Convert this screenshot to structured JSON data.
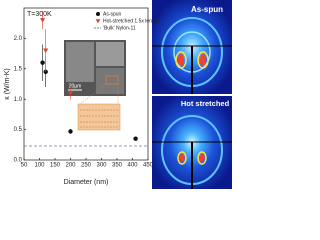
{
  "chart_data": {
    "type": "scatter",
    "annotation": "T=300K",
    "x_label": "Diameter (nm)",
    "y_label": "κ (W/m-K)",
    "xlim": [
      50,
      450
    ],
    "xticks": [
      50,
      100,
      150,
      200,
      250,
      300,
      350,
      400,
      450
    ],
    "ylim": [
      0,
      2.5
    ],
    "yticks": [
      {
        "value": 0,
        "label": "0.0"
      },
      0.5,
      {
        "value": 1,
        "label": "1.0"
      },
      1.5,
      {
        "value": 2,
        "label": "2.0"
      }
    ],
    "series": [
      {
        "name": "As-spun",
        "color": "#111111",
        "marker": "circle",
        "x": [
          110,
          120,
          200,
          410
        ],
        "values": [
          1.6,
          1.45,
          0.47,
          0.35
        ],
        "errors": [
          0.3,
          0.25,
          0.04,
          0.03
        ]
      },
      {
        "name": "Hot-stretched 1.5x length",
        "color": "#d9432f",
        "marker": "triangle-down",
        "x": [
          110,
          120,
          200
        ],
        "values": [
          2.3,
          1.8,
          1.1
        ],
        "errors": [
          0.15,
          0.35,
          0.1
        ]
      }
    ],
    "reference_line": {
      "name": "'Bulk' Nylon-11",
      "value": 0.23,
      "color": "#6b7fb5"
    }
  },
  "inset": {
    "scale_bar": "20µm"
  },
  "panels": {
    "labels": [
      "As-spun",
      "Hot stretched"
    ]
  }
}
